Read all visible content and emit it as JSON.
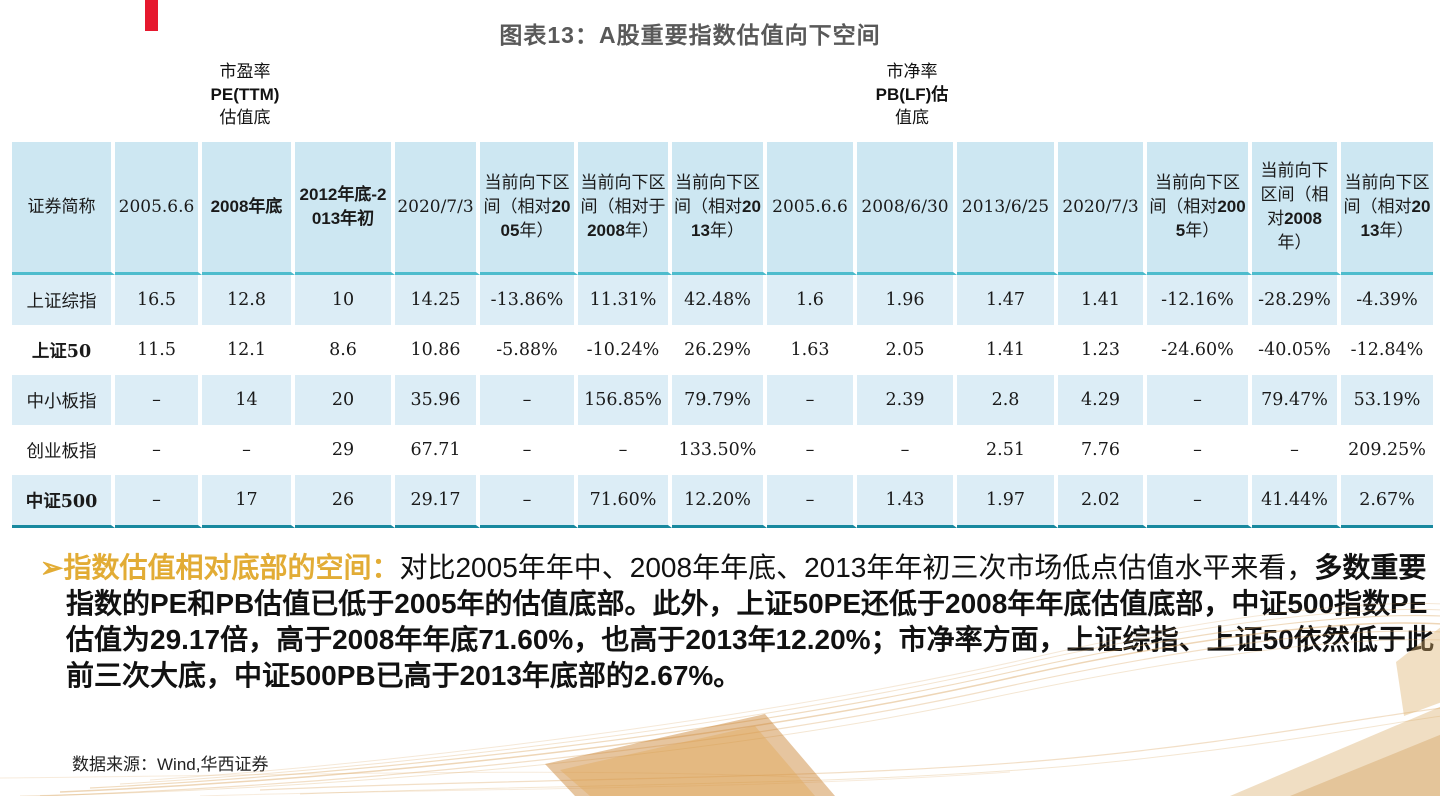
{
  "slide": {
    "title": "图表13：A股重要指数估值向下空间",
    "pe_label": {
      "l1": "市盈率",
      "l2": "PE(TTM)",
      "l3": "估值底"
    },
    "pb_label": {
      "l1": "市净率",
      "l2": "PB(LF)估",
      "l3": "值底"
    },
    "source": "数据来源：Wind,华西证券"
  },
  "table": {
    "name_header": "证券简称",
    "columns": [
      {
        "parts": [
          {
            "t": "2005.6.6",
            "b": false
          }
        ]
      },
      {
        "parts": [
          {
            "t": "2008年底",
            "b": true
          }
        ]
      },
      {
        "parts": [
          {
            "t": "2012年底-2013年初",
            "b": true
          }
        ]
      },
      {
        "parts": [
          {
            "t": "2020/7/3",
            "b": false
          }
        ]
      },
      {
        "parts": [
          {
            "t": "当前向下区间（相对",
            "b": false
          },
          {
            "t": "2005",
            "b": true
          },
          {
            "t": "年）",
            "b": false
          }
        ]
      },
      {
        "parts": [
          {
            "t": "当前向下区间（相对于",
            "b": false
          },
          {
            "t": "2008",
            "b": true
          },
          {
            "t": "年）",
            "b": false
          }
        ]
      },
      {
        "parts": [
          {
            "t": "当前向下区间（相对",
            "b": false
          },
          {
            "t": "2013",
            "b": true
          },
          {
            "t": "年）",
            "b": false
          }
        ]
      },
      {
        "parts": [
          {
            "t": "2005.6.6",
            "b": false
          }
        ]
      },
      {
        "parts": [
          {
            "t": "2008/6/30",
            "b": false
          }
        ]
      },
      {
        "parts": [
          {
            "t": "2013/6/25",
            "b": false
          }
        ]
      },
      {
        "parts": [
          {
            "t": "2020/7/3",
            "b": false
          }
        ]
      },
      {
        "parts": [
          {
            "t": "当前向下区间（相对",
            "b": false
          },
          {
            "t": "2005",
            "b": true
          },
          {
            "t": "年）",
            "b": false
          }
        ]
      },
      {
        "parts": [
          {
            "t": "当前向下区间（相对",
            "b": false
          },
          {
            "t": "2008",
            "b": true
          },
          {
            "t": "年）",
            "b": false
          }
        ]
      },
      {
        "parts": [
          {
            "t": "当前向下区间（相对",
            "b": false
          },
          {
            "t": "2013",
            "b": true
          },
          {
            "t": "年）",
            "b": false
          }
        ]
      }
    ],
    "rows": [
      {
        "name": "上证综指",
        "bold": false,
        "values": [
          "16.5",
          "12.8",
          "10",
          "14.25",
          "-13.86%",
          "11.31%",
          "42.48%",
          "1.6",
          "1.96",
          "1.47",
          "1.41",
          "-12.16%",
          "-28.29%",
          "-4.39%"
        ]
      },
      {
        "name": "上证50",
        "bold": true,
        "values": [
          "11.5",
          "12.1",
          "8.6",
          "10.86",
          "-5.88%",
          "-10.24%",
          "26.29%",
          "1.63",
          "2.05",
          "1.41",
          "1.23",
          "-24.60%",
          "-40.05%",
          "-12.84%"
        ]
      },
      {
        "name": "中小板指",
        "bold": false,
        "values": [
          "–",
          "14",
          "20",
          "35.96",
          "–",
          "156.85%",
          "79.79%",
          "–",
          "2.39",
          "2.8",
          "4.29",
          "–",
          "79.47%",
          "53.19%"
        ]
      },
      {
        "name": "创业板指",
        "bold": false,
        "values": [
          "–",
          "–",
          "29",
          "67.71",
          "–",
          "–",
          "133.50%",
          "–",
          "–",
          "2.51",
          "7.76",
          "–",
          "–",
          "209.25%"
        ]
      },
      {
        "name": "中证500",
        "bold": true,
        "values": [
          "–",
          "17",
          "26",
          "29.17",
          "–",
          "71.60%",
          "12.20%",
          "–",
          "1.43",
          "1.97",
          "2.02",
          "–",
          "41.44%",
          "2.67%"
        ]
      }
    ]
  },
  "commentary": {
    "bullet": "➢",
    "lead": "指数估值相对底部的空间：",
    "normal": "对比2005年年中、2008年年底、2013年年初三次市场低点估值水平来看，",
    "bold": "多数重要指数的PE和PB估值已低于2005年的估值底部。此外，上证50PE还低于2008年年底估值底部，中证500指数PE估值为29.17倍，高于2008年年底71.60%，也高于2013年12.20%；市净率方面，上证综指、上证50依然低于此前三次大底，中证500PB已高于2013年底部的2.67%。"
  },
  "colors": {
    "accent_red": "#e6182e",
    "title_gray": "#595959",
    "header_bg": "#cde7f2",
    "row_alt_bg": "#dcedf6",
    "header_border_teal": "#4ebccd",
    "table_bottom_teal": "#18899f",
    "highlight_gold": "#e2ac35",
    "deco_tan": "#d9a45f"
  }
}
